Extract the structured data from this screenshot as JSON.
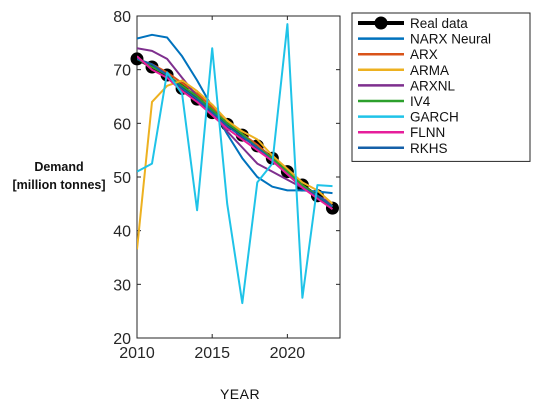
{
  "chart_data": {
    "type": "line",
    "xlabel": "YEAR",
    "ylabel_lines": [
      "Demand",
      "[million tonnes]"
    ],
    "xlim": [
      2010,
      2023.5
    ],
    "ylim": [
      20,
      80
    ],
    "xticks": [
      2010,
      2015,
      2020
    ],
    "yticks": [
      20,
      30,
      40,
      50,
      60,
      70,
      80
    ],
    "legend_position": "top-right",
    "x": [
      2010,
      2011,
      2012,
      2013,
      2014,
      2015,
      2016,
      2017,
      2018,
      2019,
      2020,
      2021,
      2022,
      2023
    ],
    "series": [
      {
        "name": "NARX Neural",
        "color": "#0072BD",
        "width": 2,
        "values": [
          75.8,
          76.5,
          76.0,
          72.5,
          68.0,
          63.0,
          58.0,
          53.5,
          50.0,
          48.2,
          47.5,
          47.5,
          47.3,
          47.0
        ]
      },
      {
        "name": "ARX",
        "color": "#D95319",
        "width": 2,
        "values": [
          72.0,
          71.0,
          69.5,
          67.5,
          65.5,
          63.0,
          60.5,
          58.0,
          56.0,
          53.5,
          51.0,
          48.5,
          46.5,
          44.5
        ]
      },
      {
        "name": "ARMA",
        "color": "#EDB120",
        "width": 2,
        "values": [
          36.5,
          64.0,
          67.0,
          68.0,
          66.0,
          63.5,
          60.5,
          58.5,
          57.0,
          54.0,
          51.5,
          49.0,
          47.5,
          45.0
        ]
      },
      {
        "name": "ARXNL",
        "color": "#7E2F8E",
        "width": 2,
        "values": [
          74.0,
          73.5,
          72.0,
          68.5,
          65.0,
          62.0,
          58.5,
          55.5,
          52.5,
          51.0,
          49.5,
          48.0,
          46.5,
          45.0
        ]
      },
      {
        "name": "IV4",
        "color": "#2CA02C",
        "width": 2,
        "values": [
          72.0,
          70.5,
          69.0,
          67.0,
          65.0,
          62.5,
          60.0,
          58.0,
          55.5,
          53.5,
          51.0,
          48.5,
          46.5,
          44.5
        ]
      },
      {
        "name": "GARCH",
        "color": "#1FC3E8",
        "width": 2,
        "values": [
          51.0,
          52.5,
          69.5,
          65.5,
          43.8,
          74.0,
          45.0,
          26.5,
          49.0,
          52.5,
          78.5,
          27.5,
          48.5,
          48.3
        ]
      },
      {
        "name": "FLNN",
        "color": "#E61E9B",
        "width": 2,
        "values": [
          72.5,
          70.0,
          68.5,
          66.0,
          64.0,
          61.5,
          59.0,
          57.0,
          55.0,
          53.0,
          50.5,
          48.0,
          46.0,
          44.0
        ]
      },
      {
        "name": "RKHS",
        "color": "#1560A8",
        "width": 2,
        "values": [
          72.0,
          71.0,
          69.0,
          66.5,
          64.5,
          62.0,
          59.5,
          57.5,
          55.5,
          53.0,
          50.5,
          48.0,
          46.5,
          44.5
        ]
      }
    ],
    "real_data": {
      "name": "Real data",
      "color": "#000000",
      "values": [
        72.0,
        70.5,
        69.0,
        66.5,
        64.5,
        62.0,
        59.8,
        57.8,
        55.8,
        53.5,
        51.0,
        48.5,
        46.5,
        44.2
      ]
    }
  }
}
